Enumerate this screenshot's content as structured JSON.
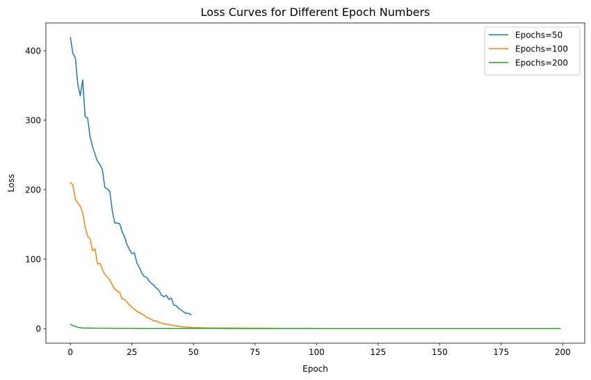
{
  "chart_data": {
    "type": "line",
    "title": "Loss Curves for Different Epoch Numbers",
    "xlabel": "Epoch",
    "ylabel": "Loss",
    "xlim": [
      -9.95,
      208.95
    ],
    "ylim": [
      -20.9,
      439.9
    ],
    "xticks": [
      0,
      25,
      50,
      75,
      100,
      125,
      150,
      175,
      200
    ],
    "yticks": [
      0,
      100,
      200,
      300,
      400
    ],
    "grid": false,
    "legend_position": "top-right",
    "series": [
      {
        "name": "Epochs=50",
        "color": "#1f77b4",
        "x": [
          0,
          1,
          2,
          3,
          4,
          5,
          6,
          7,
          8,
          9,
          10,
          11,
          12,
          13,
          14,
          15,
          16,
          17,
          18,
          19,
          20,
          21,
          22,
          23,
          24,
          25,
          26,
          27,
          28,
          29,
          30,
          31,
          32,
          33,
          34,
          35,
          36,
          37,
          38,
          39,
          40,
          41,
          42,
          43,
          44,
          45,
          46,
          47,
          48,
          49
        ],
        "y": [
          419,
          396,
          390,
          352,
          335,
          358,
          305,
          303,
          276,
          262,
          251,
          241,
          236,
          229,
          203,
          201,
          198,
          170,
          152,
          152,
          151,
          140,
          132,
          121,
          114,
          108,
          109,
          95,
          88,
          80,
          75,
          74,
          68,
          65,
          62,
          58,
          55,
          48,
          46,
          48,
          42,
          44,
          34,
          33,
          29,
          27,
          24,
          22,
          22,
          20
        ]
      },
      {
        "name": "Epochs=100",
        "color": "#ff7f0e",
        "x": [
          0,
          1,
          2,
          3,
          4,
          5,
          6,
          7,
          8,
          9,
          10,
          11,
          12,
          13,
          14,
          15,
          16,
          17,
          18,
          19,
          20,
          21,
          22,
          23,
          24,
          25,
          26,
          27,
          28,
          29,
          30,
          31,
          32,
          33,
          34,
          35,
          36,
          37,
          38,
          39,
          40,
          41,
          42,
          43,
          44,
          45,
          46,
          47,
          48,
          49,
          50,
          55,
          60,
          65,
          70,
          75,
          80,
          85,
          90,
          95,
          99
        ],
        "y": [
          210,
          207,
          186,
          181,
          176,
          167,
          146,
          133,
          129,
          112,
          115,
          93,
          94,
          85,
          78,
          74,
          70,
          63,
          57,
          54,
          52,
          43,
          42,
          38,
          34,
          31,
          28,
          25,
          23,
          21,
          19,
          16,
          15,
          13,
          11,
          11,
          9,
          8,
          7,
          6,
          6,
          5,
          4.5,
          4,
          3.5,
          3,
          2.5,
          2.2,
          2,
          1.7,
          1.5,
          1.1,
          0.9,
          0.8,
          0.7,
          0.6,
          0.6,
          0.5,
          0.5,
          0.5,
          0.5
        ]
      },
      {
        "name": "Epochs=200",
        "color": "#2ca02c",
        "x": [
          0,
          1,
          2,
          3,
          4,
          5,
          6,
          7,
          8,
          9,
          10,
          15,
          20,
          25,
          30,
          40,
          50,
          60,
          70,
          80,
          90,
          100,
          110,
          120,
          130,
          140,
          150,
          160,
          170,
          180,
          190,
          199
        ],
        "y": [
          6.2,
          4.5,
          3.2,
          2,
          1.3,
          1,
          0.9,
          0.8,
          0.8,
          0.8,
          0.7,
          0.6,
          0.5,
          0.5,
          0.4,
          0.35,
          0.3,
          0.3,
          0.25,
          0.25,
          0.2,
          0.2,
          0.2,
          0.2,
          0.2,
          0.2,
          0.2,
          0.2,
          0.2,
          0.2,
          0.2,
          0.2
        ]
      }
    ]
  }
}
